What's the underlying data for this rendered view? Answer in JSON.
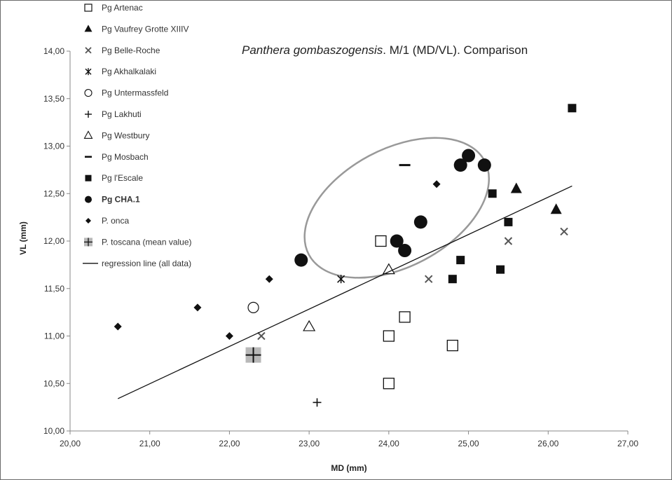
{
  "chart_data": {
    "type": "scatter",
    "title_italic": "Panthera gombaszogensis",
    "title_rest": ". M/1 (MD/VL). Comparison",
    "xlabel": "MD (mm)",
    "ylabel": "VL (mm)",
    "xlim": [
      20,
      27
    ],
    "ylim": [
      10,
      14
    ],
    "x_ticks": [
      "20,00",
      "21,00",
      "22,00",
      "23,00",
      "24,00",
      "25,00",
      "26,00",
      "27,00"
    ],
    "y_ticks": [
      "10,00",
      "10,50",
      "11,00",
      "11,50",
      "12,00",
      "12,50",
      "13,00",
      "13,50",
      "14,00"
    ],
    "legend_position": "top-left",
    "series": [
      {
        "name": "Pg Artenac",
        "marker": "open-square",
        "x": [
          23.9,
          24.0,
          24.0,
          24.2,
          24.8
        ],
        "y": [
          12.0,
          11.0,
          10.5,
          11.2,
          10.9
        ]
      },
      {
        "name": "Pg Vaufrey Grotte XIIIV",
        "marker": "triangle",
        "x": [
          25.6,
          26.1
        ],
        "y": [
          12.55,
          12.33
        ]
      },
      {
        "name": "Pg Belle-Roche",
        "marker": "x",
        "x": [
          22.4,
          24.5,
          25.5,
          26.2
        ],
        "y": [
          11.0,
          11.6,
          12.0,
          12.1
        ]
      },
      {
        "name": "Pg Akhalkalaki",
        "marker": "asterisk",
        "x": [
          23.4
        ],
        "y": [
          11.6
        ]
      },
      {
        "name": "Pg Untermassfeld",
        "marker": "open-circle",
        "x": [
          22.3
        ],
        "y": [
          11.3
        ]
      },
      {
        "name": "Pg Lakhuti",
        "marker": "plus",
        "x": [
          23.1
        ],
        "y": [
          10.3
        ]
      },
      {
        "name": "Pg Westbury",
        "marker": "open-triangle",
        "x": [
          23.0,
          24.0
        ],
        "y": [
          11.1,
          11.7
        ]
      },
      {
        "name": "Pg Mosbach",
        "marker": "dash",
        "x": [
          24.2
        ],
        "y": [
          12.8
        ]
      },
      {
        "name": "Pg l'Escale",
        "marker": "square",
        "x": [
          24.8,
          24.9,
          25.3,
          25.4,
          25.5,
          26.3
        ],
        "y": [
          11.6,
          11.8,
          12.5,
          11.7,
          12.2,
          13.4
        ]
      },
      {
        "name": "Pg CHA.1",
        "marker": "circle",
        "bold": true,
        "x": [
          22.9,
          24.1,
          24.2,
          24.4,
          24.9,
          25.0,
          25.2
        ],
        "y": [
          11.8,
          12.0,
          11.9,
          12.2,
          12.8,
          12.9,
          12.8
        ]
      },
      {
        "name": "P. onca",
        "marker": "diamond",
        "x": [
          20.6,
          21.6,
          22.0,
          22.5,
          24.6
        ],
        "y": [
          11.1,
          11.3,
          11.0,
          11.6,
          12.6
        ]
      },
      {
        "name": "P. toscana (mean value)",
        "marker": "grey-square-plus",
        "x": [
          22.3
        ],
        "y": [
          10.8
        ]
      },
      {
        "name": "regression line (all data)",
        "marker": "line",
        "x": [
          20.6,
          26.3
        ],
        "y": [
          10.34,
          12.58
        ]
      }
    ],
    "annotations": [
      {
        "type": "ellipse",
        "cx": 24.1,
        "cy": 12.35,
        "rx": 1.25,
        "ry": 0.62,
        "rotation_deg": -28,
        "color": "#999999"
      }
    ]
  }
}
